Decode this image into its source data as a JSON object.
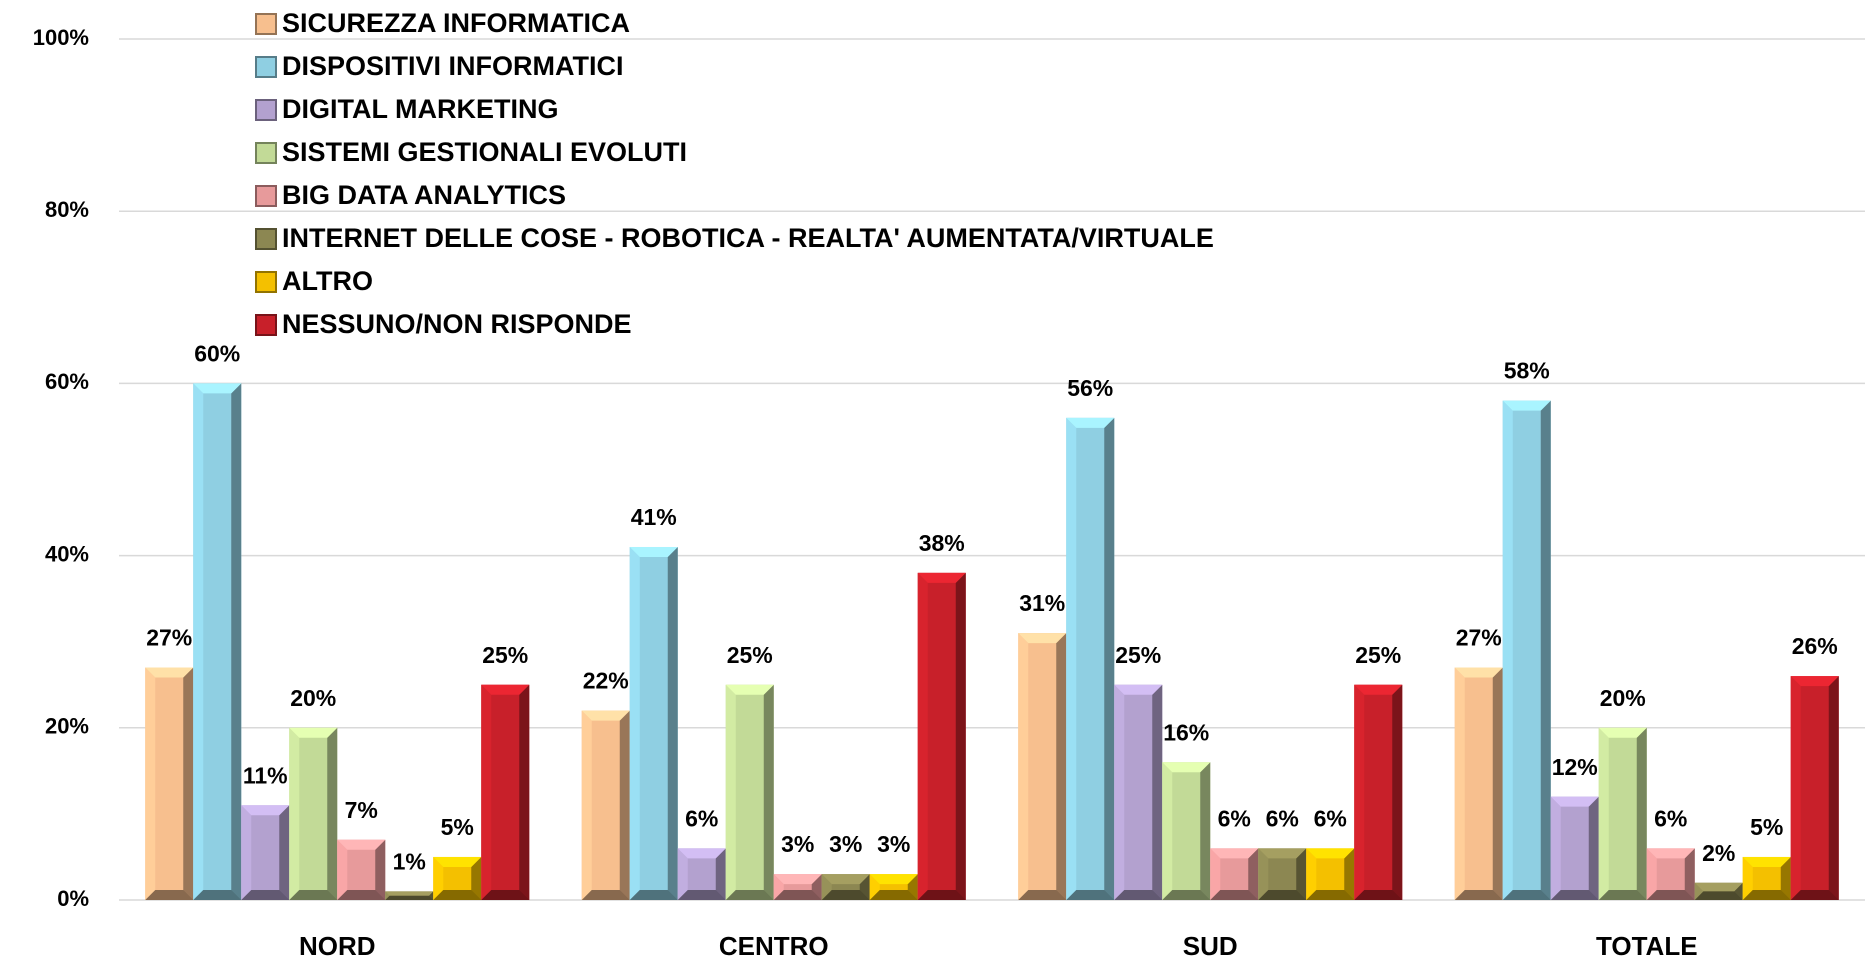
{
  "chart_data": {
    "type": "bar",
    "categories": [
      "NORD",
      "CENTRO",
      "SUD",
      "TOTALE"
    ],
    "series": [
      {
        "name": "SICUREZZA INFORMATICA",
        "color": "#f7bf8e",
        "values": [
          27,
          22,
          31,
          27
        ],
        "value_labels": [
          "27%",
          "22%",
          "31%",
          "27%"
        ]
      },
      {
        "name": "DISPOSITIVI INFORMATICI",
        "color": "#8fcfe2",
        "values": [
          60,
          41,
          56,
          58
        ],
        "value_labels": [
          "60%",
          "41%",
          "56%",
          "58%"
        ]
      },
      {
        "name": "DIGITAL MARKETING",
        "color": "#b3a1cf",
        "values": [
          11,
          6,
          25,
          12
        ],
        "value_labels": [
          "11%",
          "6%",
          "25%",
          "12%"
        ]
      },
      {
        "name": "SISTEMI GESTIONALI EVOLUTI",
        "color": "#c2da97",
        "values": [
          20,
          25,
          16,
          20
        ],
        "value_labels": [
          "20%",
          "25%",
          "16%",
          "20%"
        ]
      },
      {
        "name": "BIG DATA ANALYTICS",
        "color": "#e79a9b",
        "values": [
          7,
          3,
          6,
          6
        ],
        "value_labels": [
          "7%",
          "3%",
          "6%",
          "6%"
        ]
      },
      {
        "name": "INTERNET DELLE COSE - ROBOTICA - REALTA' AUMENTATA/VIRTUALE",
        "color": "#8c8752",
        "values": [
          1,
          3,
          6,
          2
        ],
        "value_labels": [
          "1%",
          "3%",
          "6%",
          "2%"
        ]
      },
      {
        "name": "ALTRO",
        "color": "#f4c000",
        "values": [
          5,
          3,
          6,
          5
        ],
        "value_labels": [
          "5%",
          "3%",
          "6%",
          "5%"
        ]
      },
      {
        "name": "NESSUNO/NON RISPONDE",
        "color": "#c8202a",
        "values": [
          25,
          38,
          25,
          26
        ],
        "value_labels": [
          "25%",
          "38%",
          "25%",
          "26%"
        ]
      }
    ],
    "ylim": [
      0,
      100
    ],
    "yticks": [
      {
        "value": 0,
        "label": "0%"
      },
      {
        "value": 20,
        "label": "20%"
      },
      {
        "value": 40,
        "label": "40%"
      },
      {
        "value": 60,
        "label": "60%"
      },
      {
        "value": 80,
        "label": "80%"
      },
      {
        "value": 100,
        "label": "100%"
      }
    ],
    "grid": true,
    "legend": "top-left"
  }
}
